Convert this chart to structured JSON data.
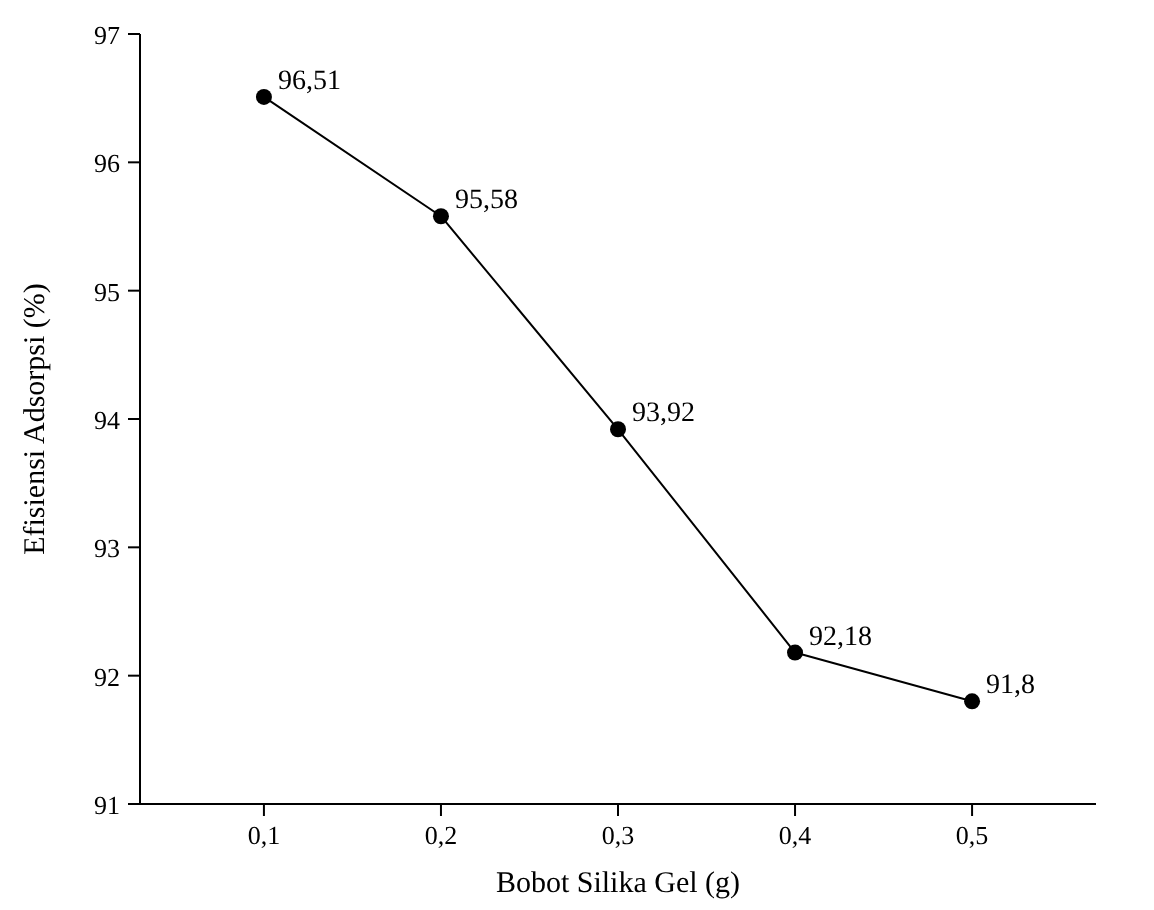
{
  "chart_data": {
    "type": "line",
    "xlabel": "Bobot Silika Gel (g)",
    "ylabel": "Efisiensi Adsorpsi (%)",
    "x": [
      0.1,
      0.2,
      0.3,
      0.4,
      0.5
    ],
    "series": [
      {
        "color": "#000000",
        "values": [
          96.51,
          95.58,
          93.92,
          92.18,
          91.8
        ],
        "value_labels": [
          "96,51",
          "95,58",
          "93,92",
          "92,18",
          "91,8"
        ]
      }
    ],
    "xlim": [
      0.03,
      0.57
    ],
    "xticks": [
      {
        "value": 0.1,
        "label": "0,1"
      },
      {
        "value": 0.2,
        "label": "0,2"
      },
      {
        "value": 0.3,
        "label": "0,3"
      },
      {
        "value": 0.4,
        "label": "0,4"
      },
      {
        "value": 0.5,
        "label": "0,5"
      }
    ],
    "ylim": [
      91,
      97
    ],
    "yticks": [
      91,
      92,
      93,
      94,
      95,
      96,
      97
    ],
    "marker": "circle",
    "line_style": "solid",
    "grid": false
  }
}
